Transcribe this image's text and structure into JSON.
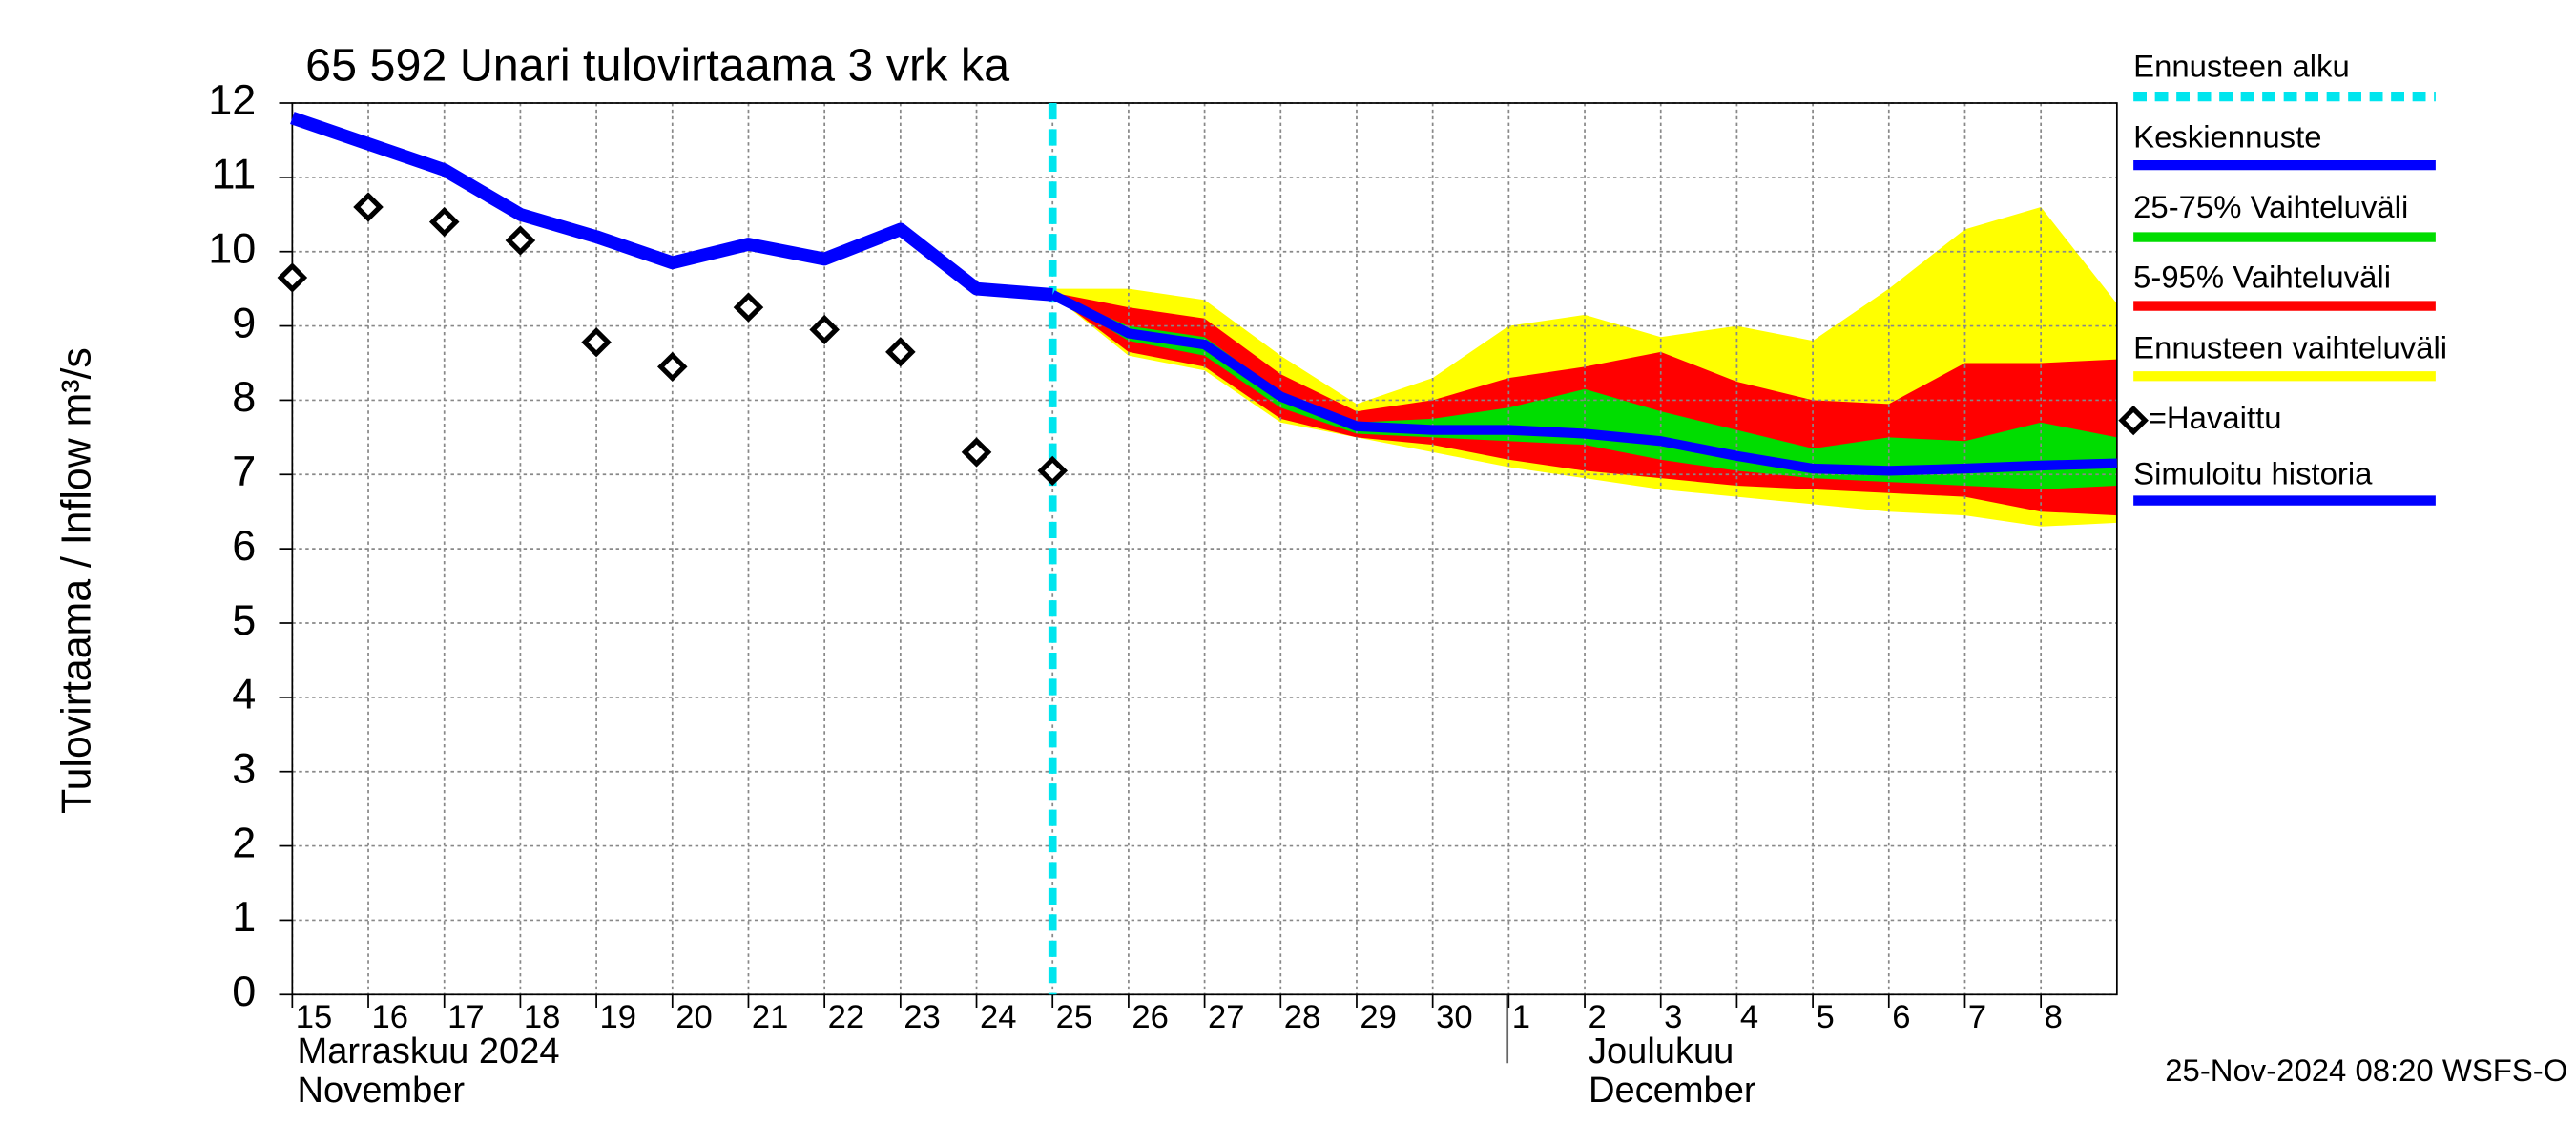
{
  "chart_data": {
    "type": "line",
    "title": "65 592 Unari tulovirtaama 3 vrk ka",
    "y_label": "Tulovirtaama / Inflow   m³/s",
    "month_labels": [
      {
        "fi": "Marraskuu 2024",
        "en": "November"
      },
      {
        "fi": "Joulukuu",
        "en": "December"
      }
    ],
    "footer": "25-Nov-2024 08:20 WSFS-O",
    "xlim": [
      "2024-11-15",
      "2024-12-09"
    ],
    "xticks": [
      {
        "value": "2024-11-15",
        "label": "15"
      },
      {
        "value": "2024-11-16",
        "label": "16"
      },
      {
        "value": "2024-11-17",
        "label": "17"
      },
      {
        "value": "2024-11-18",
        "label": "18"
      },
      {
        "value": "2024-11-19",
        "label": "19"
      },
      {
        "value": "2024-11-20",
        "label": "20"
      },
      {
        "value": "2024-11-21",
        "label": "21"
      },
      {
        "value": "2024-11-22",
        "label": "22"
      },
      {
        "value": "2024-11-23",
        "label": "23"
      },
      {
        "value": "2024-11-24",
        "label": "24"
      },
      {
        "value": "2024-11-25",
        "label": "25"
      },
      {
        "value": "2024-11-26",
        "label": "26"
      },
      {
        "value": "2024-11-27",
        "label": "27"
      },
      {
        "value": "2024-11-28",
        "label": "28"
      },
      {
        "value": "2024-11-29",
        "label": "29"
      },
      {
        "value": "2024-11-30",
        "label": "30"
      },
      {
        "value": "2024-12-01",
        "label": "1"
      },
      {
        "value": "2024-12-02",
        "label": "2"
      },
      {
        "value": "2024-12-03",
        "label": "3"
      },
      {
        "value": "2024-12-04",
        "label": "4"
      },
      {
        "value": "2024-12-05",
        "label": "5"
      },
      {
        "value": "2024-12-06",
        "label": "6"
      },
      {
        "value": "2024-12-07",
        "label": "7"
      },
      {
        "value": "2024-12-08",
        "label": "8"
      }
    ],
    "ylim": [
      0,
      12
    ],
    "yticks": [
      0,
      1,
      2,
      3,
      4,
      5,
      6,
      7,
      8,
      9,
      10,
      11,
      12
    ],
    "grid": true,
    "forecast_start": {
      "name": "Ennusteen alku",
      "x": "2024-11-25",
      "color": "#00e5ee"
    },
    "forecast_x": [
      "2024-11-25",
      "2024-11-26",
      "2024-11-27",
      "2024-11-28",
      "2024-11-29",
      "2024-11-30",
      "2024-12-01",
      "2024-12-02",
      "2024-12-03",
      "2024-12-04",
      "2024-12-05",
      "2024-12-06",
      "2024-12-07",
      "2024-12-08",
      "2024-12-09"
    ],
    "history_x": [
      "2024-11-15",
      "2024-11-16",
      "2024-11-17",
      "2024-11-18",
      "2024-11-19",
      "2024-11-20",
      "2024-11-21",
      "2024-11-22",
      "2024-11-23",
      "2024-11-24",
      "2024-11-25"
    ],
    "bands": [
      {
        "name": "Ennusteen vaihteluväli",
        "color": "#ffff00",
        "upper": [
          9.5,
          9.5,
          9.35,
          8.6,
          7.95,
          8.3,
          9.0,
          9.15,
          8.85,
          9.0,
          8.8,
          9.5,
          10.3,
          10.6,
          9.3
        ],
        "lower": [
          9.42,
          8.6,
          8.4,
          7.7,
          7.5,
          7.3,
          7.1,
          6.95,
          6.8,
          6.7,
          6.6,
          6.5,
          6.45,
          6.3,
          6.35
        ]
      },
      {
        "name": "5-95% Vaihteluväli",
        "color": "#ff0000",
        "upper": [
          9.45,
          9.25,
          9.1,
          8.35,
          7.85,
          8.0,
          8.3,
          8.45,
          8.65,
          8.25,
          8.0,
          7.95,
          8.5,
          8.5,
          8.55
        ],
        "lower": [
          9.42,
          8.65,
          8.45,
          7.75,
          7.5,
          7.4,
          7.2,
          7.05,
          6.95,
          6.85,
          6.8,
          6.75,
          6.7,
          6.5,
          6.45
        ]
      },
      {
        "name": "25-75% Vaihteluväli",
        "color": "#00dd00",
        "upper": [
          9.43,
          9.0,
          8.85,
          8.1,
          7.7,
          7.75,
          7.9,
          8.15,
          7.85,
          7.6,
          7.35,
          7.5,
          7.45,
          7.7,
          7.5
        ],
        "lower": [
          9.42,
          8.8,
          8.6,
          7.9,
          7.55,
          7.5,
          7.45,
          7.4,
          7.2,
          7.05,
          6.95,
          6.9,
          6.85,
          6.8,
          6.85
        ]
      }
    ],
    "series": [
      {
        "name": "Keskiennuste",
        "color": "#0000ff",
        "x_key": "forecast_x",
        "values": [
          9.42,
          8.9,
          8.75,
          8.05,
          7.65,
          7.6,
          7.6,
          7.55,
          7.45,
          7.25,
          7.08,
          7.05,
          7.08,
          7.12,
          7.15
        ]
      },
      {
        "name": "Simuloitu historia",
        "color": "#0000ff",
        "x_key": "history_x",
        "values": [
          11.8,
          11.45,
          11.1,
          10.5,
          10.2,
          9.85,
          10.1,
          9.9,
          10.3,
          9.5,
          9.42
        ]
      },
      {
        "name": "=Havaittu",
        "color": "#000000",
        "x_key": "history_x",
        "marker": "diamond",
        "values": [
          9.65,
          10.6,
          10.4,
          10.15,
          8.78,
          8.45,
          9.25,
          8.95,
          8.65,
          7.3,
          7.05
        ]
      }
    ]
  }
}
